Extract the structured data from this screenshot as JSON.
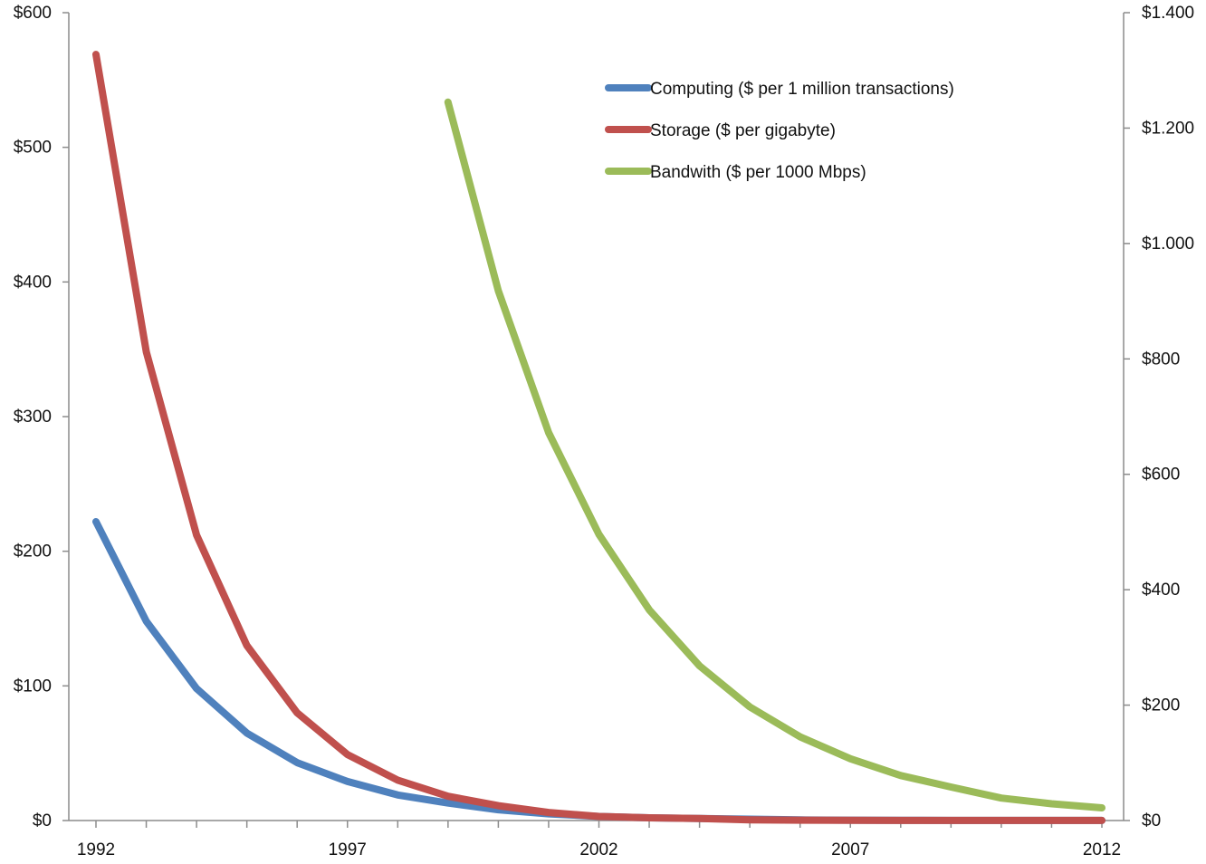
{
  "chart_data": {
    "type": "line",
    "title": "",
    "xlabel": "",
    "ylabel": "",
    "x": [
      1992,
      1993,
      1994,
      1995,
      1996,
      1997,
      1998,
      1999,
      2000,
      2001,
      2002,
      2003,
      2004,
      2005,
      2006,
      2007,
      2008,
      2009,
      2010,
      2011,
      2012
    ],
    "x_ticks": [
      1992,
      1997,
      2002,
      2007,
      2012
    ],
    "x_tick_labels": [
      "1992",
      "1997",
      "2002",
      "2007",
      "2012"
    ],
    "xlim": [
      1992,
      2012
    ],
    "y_left": {
      "ylim": [
        0,
        600
      ],
      "ticks": [
        0,
        100,
        200,
        300,
        400,
        500,
        600
      ],
      "tick_labels": [
        "$0",
        "$100",
        "$200",
        "$300",
        "$400",
        "$500",
        "$600"
      ]
    },
    "y_right": {
      "ylim": [
        0,
        1400
      ],
      "ticks": [
        0,
        200,
        400,
        600,
        800,
        1000,
        1200,
        1400
      ],
      "tick_labels": [
        "$0",
        "$200",
        "$400",
        "$600",
        "$800",
        "$1.000",
        "$1.200",
        "$1.400"
      ]
    },
    "grid": false,
    "legend_position": "top-right",
    "series": [
      {
        "name": "Computing ($ per 1 million transactions)",
        "axis": "left",
        "color": "#4f81bd",
        "x": [
          1992,
          1993,
          1994,
          1995,
          1996,
          1997,
          1998,
          1999,
          2000,
          2001,
          2002,
          2003,
          2004,
          2005,
          2006,
          2007,
          2008,
          2009,
          2010,
          2011,
          2012
        ],
        "values": [
          222,
          148,
          98,
          65,
          43,
          29,
          19,
          13,
          8,
          5,
          3,
          2,
          1.5,
          1,
          0.5,
          0.3,
          0.2,
          0.1,
          0.1,
          0.1,
          0.1
        ]
      },
      {
        "name": "Storage ($ per gigabyte)",
        "axis": "left",
        "color": "#c0504d",
        "x": [
          1992,
          1993,
          1994,
          1995,
          1996,
          1997,
          1998,
          1999,
          2000,
          2001,
          2002,
          2003,
          2004,
          2005,
          2006,
          2007,
          2008,
          2009,
          2010,
          2011,
          2012
        ],
        "values": [
          569,
          348,
          212,
          130,
          80,
          49,
          30,
          18,
          11,
          6,
          3,
          2,
          1.5,
          0.5,
          0.3,
          0.2,
          0.1,
          0.1,
          0.1,
          0.1,
          0.1
        ]
      },
      {
        "name": "Bandwith ($ per 1000 Mbps)",
        "axis": "right",
        "color": "#9bbb59",
        "x": [
          1999,
          2000,
          2001,
          2002,
          2003,
          2004,
          2005,
          2006,
          2007,
          2008,
          2009,
          2010,
          2011,
          2012
        ],
        "values": [
          1245,
          918,
          672,
          496,
          365,
          268,
          197,
          145,
          107,
          78,
          58,
          39,
          29,
          22
        ]
      }
    ]
  }
}
